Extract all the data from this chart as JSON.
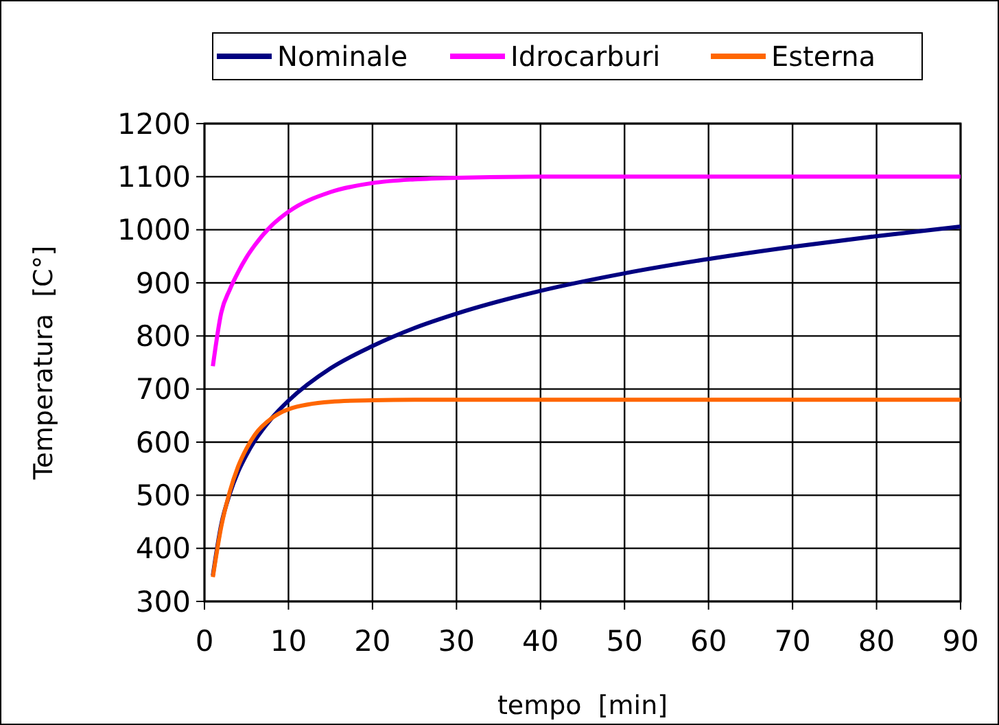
{
  "chart_data": {
    "type": "line",
    "xlabel": "tempo  [min]",
    "ylabel": "Temperatura  [C°]",
    "x": [
      1,
      2,
      3,
      4,
      5,
      6,
      8,
      10,
      15,
      20,
      25,
      30,
      40,
      50,
      60,
      70,
      80,
      90
    ],
    "series": [
      {
        "name": "Nominale",
        "color": "#000080",
        "values": [
          349,
          445,
          502,
          544,
          576,
          603,
          645,
          678,
          739,
          781,
          815,
          842,
          885,
          918,
          945,
          968,
          988,
          1006
        ]
      },
      {
        "name": "Idrocarburi",
        "color": "#ff00ff",
        "values": [
          743,
          844,
          887,
          920,
          948,
          971,
          1008,
          1034,
          1071,
          1088,
          1095,
          1098,
          1100,
          1100,
          1100,
          1100,
          1100,
          1100
        ]
      },
      {
        "name": "Esterna",
        "color": "#ff6600",
        "values": [
          346,
          441,
          506,
          554,
          588,
          614,
          645,
          662,
          676,
          679,
          680,
          680,
          680,
          680,
          680,
          680,
          680,
          680
        ]
      }
    ],
    "xlim": [
      0,
      90
    ],
    "xticks": [
      0,
      10,
      20,
      30,
      40,
      50,
      60,
      70,
      80,
      90
    ],
    "ylim": [
      300,
      1200
    ],
    "yticks": [
      300,
      400,
      500,
      600,
      700,
      800,
      900,
      1000,
      1100,
      1200
    ],
    "grid": true,
    "legend": "top",
    "marker": "none",
    "line_style": "solid"
  }
}
